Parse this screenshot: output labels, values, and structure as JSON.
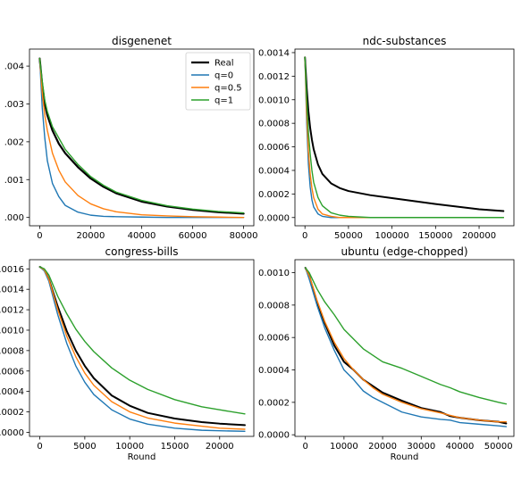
{
  "chart_data": [
    {
      "type": "line",
      "title": "disgenenet",
      "xlabel": "",
      "xlim": [
        -4000,
        84000
      ],
      "ylim": [
        -0.00022,
        0.00445
      ],
      "xticks": [
        0,
        20000,
        40000,
        60000,
        80000
      ],
      "xtick_labels": [
        "0",
        "20000",
        "40000",
        "60000",
        "80000"
      ],
      "yticks": [
        0,
        0.001,
        0.002,
        0.003,
        0.004
      ],
      "ytick_labels": [
        ".000",
        ".001",
        ".002",
        ".003",
        ".004"
      ],
      "legend": {
        "position": "top-right",
        "entries": [
          "Real",
          "q=0",
          "q=0.5",
          "q=1"
        ]
      },
      "series": [
        {
          "name": "Real",
          "color": "#000000",
          "width": 2.2,
          "x": [
            0,
            1000,
            2000,
            3000,
            5000,
            7500,
            10000,
            15000,
            20000,
            25000,
            30000,
            40000,
            50000,
            60000,
            70000,
            80000
          ],
          "y": [
            0.0042,
            0.0035,
            0.003,
            0.0027,
            0.0023,
            0.00195,
            0.0017,
            0.00133,
            0.00103,
            0.00081,
            0.00064,
            0.00042,
            0.00029,
            0.0002,
            0.00014,
            0.0001
          ]
        },
        {
          "name": "q=0",
          "color": "#1f77b4",
          "width": 1.4,
          "x": [
            0,
            1000,
            2000,
            3000,
            5000,
            7500,
            10000,
            15000,
            20000,
            25000,
            30000,
            40000,
            50000,
            60000,
            70000,
            80000
          ],
          "y": [
            0.0042,
            0.0029,
            0.0021,
            0.0015,
            0.0009,
            0.00055,
            0.00032,
            0.00014,
            6e-05,
            3e-05,
            2e-05,
            1e-05,
            0,
            0,
            0,
            0
          ]
        },
        {
          "name": "q=0.5",
          "color": "#ff7f0e",
          "width": 1.4,
          "x": [
            0,
            1000,
            2000,
            3000,
            5000,
            7500,
            10000,
            15000,
            20000,
            25000,
            30000,
            40000,
            50000,
            60000,
            70000,
            80000
          ],
          "y": [
            0.0042,
            0.0033,
            0.0027,
            0.0023,
            0.0017,
            0.00125,
            0.00094,
            0.00058,
            0.00036,
            0.00023,
            0.00015,
            7e-05,
            4e-05,
            2e-05,
            1e-05,
            0
          ]
        },
        {
          "name": "q=1",
          "color": "#2ca02c",
          "width": 1.4,
          "x": [
            0,
            1000,
            2000,
            3000,
            5000,
            7500,
            10000,
            15000,
            20000,
            25000,
            30000,
            40000,
            50000,
            60000,
            70000,
            80000
          ],
          "y": [
            0.0042,
            0.0036,
            0.0031,
            0.0028,
            0.0024,
            0.0021,
            0.0018,
            0.0014,
            0.00108,
            0.00085,
            0.00067,
            0.00045,
            0.00031,
            0.00022,
            0.00016,
            0.00012
          ]
        }
      ]
    },
    {
      "type": "line",
      "title": "ndc-substances",
      "xlabel": "",
      "xlim": [
        -11500,
        240000
      ],
      "ylim": [
        -7e-05,
        0.00143
      ],
      "xticks": [
        0,
        50000,
        100000,
        150000,
        200000
      ],
      "xtick_labels": [
        "0",
        "50000",
        "100000",
        "150000",
        "200000"
      ],
      "yticks": [
        0,
        0.0002,
        0.0004,
        0.0006,
        0.0008,
        0.001,
        0.0012,
        0.0014
      ],
      "ytick_labels": [
        "0.0000",
        "0.0002",
        "0.0004",
        "0.0006",
        "0.0008",
        "0.0010",
        "0.0012",
        "0.0014"
      ],
      "series": [
        {
          "name": "Real",
          "color": "#000000",
          "width": 2.0,
          "x": [
            0,
            2000,
            4000,
            6000,
            8000,
            10000,
            15000,
            20000,
            30000,
            40000,
            50000,
            75000,
            100000,
            150000,
            200000,
            228000
          ],
          "y": [
            0.00136,
            0.0011,
            0.0009,
            0.00076,
            0.00066,
            0.00058,
            0.00045,
            0.00037,
            0.00029,
            0.00025,
            0.000225,
            0.00019,
            0.000165,
            0.000115,
            7e-05,
            5.5e-05
          ]
        },
        {
          "name": "q=0",
          "color": "#1f77b4",
          "width": 1.4,
          "x": [
            0,
            2000,
            4000,
            6000,
            8000,
            10000,
            15000,
            20000,
            30000,
            40000,
            50000,
            75000,
            100000,
            150000,
            200000,
            228000
          ],
          "y": [
            0.00136,
            0.0008,
            0.00045,
            0.00026,
            0.00015,
            9e-05,
            3e-05,
            1e-05,
            0,
            0,
            0,
            0,
            0,
            0,
            0,
            0
          ]
        },
        {
          "name": "q=0.5",
          "color": "#ff7f0e",
          "width": 1.4,
          "x": [
            0,
            2000,
            4000,
            6000,
            8000,
            10000,
            15000,
            20000,
            30000,
            40000,
            50000,
            75000,
            100000,
            150000,
            200000,
            228000
          ],
          "y": [
            0.00136,
            0.00088,
            0.00056,
            0.00037,
            0.00025,
            0.00017,
            7e-05,
            3e-05,
            1e-05,
            0,
            0,
            0,
            0,
            0,
            0,
            0
          ]
        },
        {
          "name": "q=1",
          "color": "#2ca02c",
          "width": 1.4,
          "x": [
            0,
            2000,
            4000,
            6000,
            8000,
            10000,
            15000,
            20000,
            30000,
            40000,
            50000,
            75000,
            100000,
            150000,
            200000,
            228000
          ],
          "y": [
            0.00136,
            0.001,
            0.00072,
            0.00054,
            0.0004,
            0.0003,
            0.00017,
            0.0001,
            4e-05,
            2e-05,
            1e-05,
            0,
            0,
            0,
            0,
            0
          ]
        }
      ]
    },
    {
      "type": "line",
      "title": "congress-bills",
      "xlabel": "Round",
      "xlim": [
        -1150,
        23800
      ],
      "ylim": [
        -4e-05,
        0.00169
      ],
      "xticks": [
        0,
        5000,
        10000,
        15000,
        20000
      ],
      "xtick_labels": [
        "0",
        "5000",
        "10000",
        "15000",
        "20000"
      ],
      "yticks": [
        0,
        0.0002,
        0.0004,
        0.0006,
        0.0008,
        0.001,
        0.0012,
        0.0014,
        0.0016
      ],
      "ytick_labels": [
        ".0000",
        ".0002",
        ".0004",
        ".0006",
        ".0008",
        ".0010",
        ".0012",
        ".0014",
        ".0016"
      ],
      "series": [
        {
          "name": "Real",
          "color": "#000000",
          "width": 2.0,
          "x": [
            0,
            500,
            1000,
            2000,
            3000,
            4000,
            5000,
            6000,
            8000,
            10000,
            12000,
            15000,
            18000,
            20000,
            22800
          ],
          "y": [
            0.00162,
            0.00159,
            0.0015,
            0.00123,
            0.00099,
            0.0008,
            0.00065,
            0.00053,
            0.00036,
            0.00026,
            0.00019,
            0.000135,
            0.0001,
            8.5e-05,
            7e-05
          ]
        },
        {
          "name": "q=0",
          "color": "#1f77b4",
          "width": 1.4,
          "x": [
            0,
            500,
            1000,
            2000,
            3000,
            4000,
            5000,
            6000,
            8000,
            10000,
            12000,
            15000,
            18000,
            20000,
            22800
          ],
          "y": [
            0.00162,
            0.00158,
            0.00148,
            0.00115,
            0.00087,
            0.00065,
            0.00049,
            0.00037,
            0.00022,
            0.00013,
            8e-05,
            4e-05,
            2e-05,
            1.5e-05,
            1e-05
          ]
        },
        {
          "name": "q=0.5",
          "color": "#ff7f0e",
          "width": 1.4,
          "x": [
            0,
            500,
            1000,
            2000,
            3000,
            4000,
            5000,
            6000,
            8000,
            10000,
            12000,
            15000,
            18000,
            20000,
            22800
          ],
          "y": [
            0.00162,
            0.00159,
            0.0015,
            0.0012,
            0.00094,
            0.00074,
            0.00058,
            0.00046,
            0.0003,
            0.0002,
            0.00014,
            9e-05,
            6e-05,
            4e-05,
            3e-05
          ]
        },
        {
          "name": "q=1",
          "color": "#2ca02c",
          "width": 1.4,
          "x": [
            0,
            500,
            1000,
            2000,
            3000,
            4000,
            5000,
            6000,
            8000,
            10000,
            12000,
            15000,
            18000,
            20000,
            22800
          ],
          "y": [
            0.00162,
            0.0016,
            0.00154,
            0.00133,
            0.00116,
            0.00101,
            0.00089,
            0.00079,
            0.00063,
            0.00051,
            0.00042,
            0.00032,
            0.00025,
            0.00022,
            0.00018
          ]
        }
      ]
    },
    {
      "type": "line",
      "title": "ubuntu (edge-chopped)",
      "xlabel": "Round",
      "xlim": [
        -2700,
        54000
      ],
      "ylim": [
        -1e-05,
        0.00108
      ],
      "xticks": [
        0,
        10000,
        20000,
        30000,
        40000,
        50000
      ],
      "xtick_labels": [
        "0",
        "10000",
        "20000",
        "30000",
        "40000",
        "50000"
      ],
      "yticks": [
        0,
        0.0002,
        0.0004,
        0.0006,
        0.0008,
        0.001
      ],
      "ytick_labels": [
        "0.0000",
        "0.0002",
        "0.0004",
        "0.0006",
        "0.0008",
        "0.0010"
      ],
      "series": [
        {
          "name": "Real",
          "color": "#000000",
          "width": 2.0,
          "x": [
            0,
            1000,
            2000,
            3000,
            5000,
            7500,
            10000,
            12500,
            15000,
            17500,
            20000,
            25000,
            30000,
            35000,
            37500,
            40000,
            45000,
            50000,
            52000
          ],
          "y": [
            0.00103,
            0.00098,
            0.0009,
            0.00082,
            0.00069,
            0.00055,
            0.00045,
            0.0004,
            0.00034,
            0.0003,
            0.00026,
            0.00021,
            0.000165,
            0.00014,
            0.000115,
            0.000105,
            9e-05,
            8e-05,
            7e-05
          ]
        },
        {
          "name": "q=0",
          "color": "#1f77b4",
          "width": 1.4,
          "x": [
            0,
            1000,
            2000,
            3000,
            5000,
            7500,
            10000,
            12500,
            15000,
            17500,
            20000,
            25000,
            30000,
            35000,
            37500,
            40000,
            45000,
            50000,
            52000
          ],
          "y": [
            0.00103,
            0.00096,
            0.00088,
            0.0008,
            0.00066,
            0.00052,
            0.0004,
            0.00034,
            0.00027,
            0.00023,
            0.0002,
            0.00014,
            0.00011,
            9.5e-05,
            9e-05,
            7.5e-05,
            6.5e-05,
            5.5e-05,
            5e-05
          ]
        },
        {
          "name": "q=0.5",
          "color": "#ff7f0e",
          "width": 1.4,
          "x": [
            0,
            1000,
            2000,
            3000,
            5000,
            7500,
            10000,
            12500,
            15000,
            17500,
            20000,
            25000,
            30000,
            35000,
            37500,
            40000,
            45000,
            50000,
            52000
          ],
          "y": [
            0.00103,
            0.00098,
            0.00091,
            0.00083,
            0.0007,
            0.00057,
            0.00047,
            0.0004,
            0.00034,
            0.00029,
            0.00025,
            0.0002,
            0.00016,
            0.000135,
            0.00012,
            0.000105,
            9e-05,
            8e-05,
            8e-05
          ]
        },
        {
          "name": "q=1",
          "color": "#2ca02c",
          "width": 1.4,
          "x": [
            0,
            1000,
            2000,
            3000,
            5000,
            7500,
            10000,
            12500,
            15000,
            17500,
            20000,
            25000,
            30000,
            35000,
            37500,
            40000,
            45000,
            50000,
            52000
          ],
          "y": [
            0.00103,
            0.001,
            0.00095,
            0.0009,
            0.00082,
            0.00074,
            0.00065,
            0.00059,
            0.00053,
            0.00049,
            0.00045,
            0.00041,
            0.00036,
            0.00031,
            0.00029,
            0.000265,
            0.00023,
            0.0002,
            0.00019
          ]
        }
      ]
    }
  ]
}
